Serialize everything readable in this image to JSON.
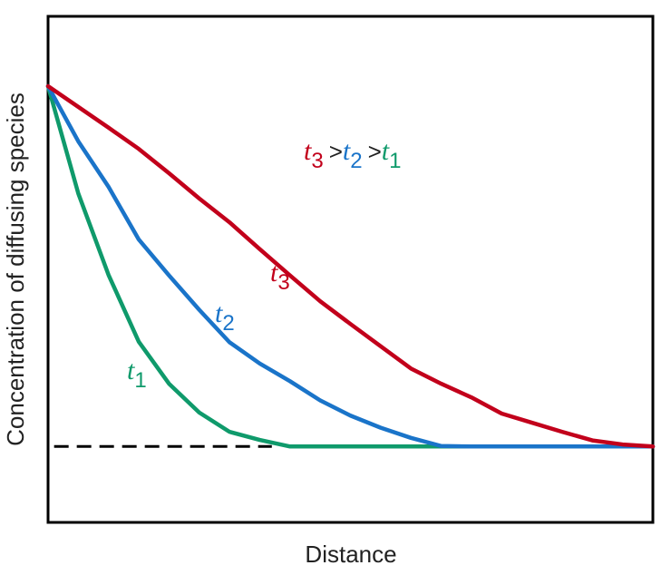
{
  "chart_data": {
    "type": "line",
    "x_label": "Distance",
    "y_label": "Concentration of diffusing species",
    "xlim": [
      0,
      100
    ],
    "ylim": [
      0,
      100
    ],
    "x": [
      0,
      5,
      10,
      15,
      20,
      25,
      30,
      35,
      40,
      45,
      50,
      55,
      60,
      65,
      70,
      75,
      80,
      85,
      90,
      95,
      100
    ],
    "series": [
      {
        "name": "t",
        "subscript": "1",
        "color": "#0f9a6b",
        "values": [
          86.2,
          65,
          48.9,
          35.7,
          27.4,
          21.7,
          17.9,
          16.3,
          15,
          15,
          15,
          15,
          15,
          15,
          15,
          15,
          15,
          15,
          15,
          15,
          15
        ]
      },
      {
        "name": "t",
        "subscript": "2",
        "color": "#1a74c9",
        "values": [
          86.2,
          75.3,
          66.3,
          55.9,
          48.8,
          42,
          35.6,
          31.4,
          27.9,
          24.1,
          21.1,
          18.7,
          16.7,
          15.1,
          15,
          15,
          15,
          15,
          15,
          15,
          15
        ]
      },
      {
        "name": "t",
        "subscript": "3",
        "color": "#c2001b",
        "values": [
          86.2,
          82.1,
          78,
          73.8,
          69,
          64,
          59.3,
          54,
          48.8,
          43.7,
          39.2,
          34.8,
          30.4,
          27.4,
          24.7,
          21.5,
          19.7,
          17.9,
          16.2,
          15.4,
          15
        ]
      }
    ],
    "dashed_line": {
      "y": 15,
      "x": [
        1,
        37
      ],
      "color": "#000000"
    },
    "annotation": [
      {
        "text": "t",
        "sub": "3",
        "color": "#c2001b"
      },
      {
        "text": ">"
      },
      {
        "text": "t",
        "sub": "2",
        "color": "#1a74c9"
      },
      {
        "text": ">"
      },
      {
        "text": "t",
        "sub": "1",
        "color": "#0f9a6b"
      }
    ]
  }
}
